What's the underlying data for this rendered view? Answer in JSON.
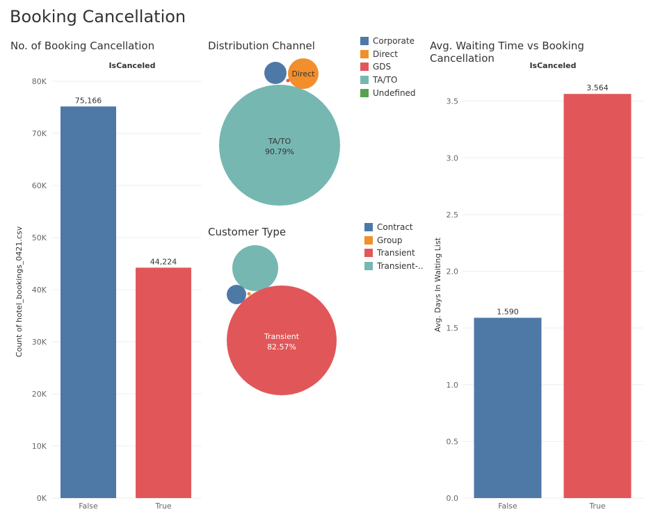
{
  "dashboard": {
    "title": "Booking Cancellation"
  },
  "chart_data": [
    {
      "id": "cancellation_count",
      "type": "bar",
      "title": "No. of Booking Cancellation",
      "column_header": "IsCanceled",
      "categories": [
        "False",
        "True"
      ],
      "values": [
        75166,
        44224
      ],
      "value_labels": [
        "75,166",
        "44,224"
      ],
      "colors": [
        "#4e79a7",
        "#e15759"
      ],
      "ylabel": "Count of hotel_bookings_0421.csv",
      "ylim": [
        0,
        80000
      ],
      "yticks": [
        0,
        10000,
        20000,
        30000,
        40000,
        50000,
        60000,
        70000,
        80000
      ],
      "ytick_labels": [
        "0K",
        "10K",
        "20K",
        "30K",
        "40K",
        "50K",
        "60K",
        "70K",
        "80K"
      ],
      "grid": true
    },
    {
      "id": "distribution_channel",
      "type": "bubble",
      "title": "Distribution Channel",
      "legend_position": "right",
      "series": [
        {
          "name": "Corporate",
          "color": "#4e79a7"
        },
        {
          "name": "Direct",
          "color": "#f28e2b",
          "label": "Direct"
        },
        {
          "name": "GDS",
          "color": "#e15759"
        },
        {
          "name": "TA/TO",
          "color": "#76b7b2",
          "label": "TA/TO",
          "share_label": "90.79%",
          "share": 0.9079
        },
        {
          "name": "Undefined",
          "color": "#59a14f"
        }
      ]
    },
    {
      "id": "customer_type",
      "type": "bubble",
      "title": "Customer Type",
      "legend_position": "right",
      "series": [
        {
          "name": "Contract",
          "color": "#4e79a7"
        },
        {
          "name": "Group",
          "color": "#f28e2b"
        },
        {
          "name": "Transient",
          "color": "#e15759",
          "label": "Transient",
          "share_label": "82.57%",
          "share": 0.8257
        },
        {
          "name": "Transient-..",
          "color": "#76b7b2"
        }
      ]
    },
    {
      "id": "avg_waiting_time",
      "type": "bar",
      "title": "Avg. Waiting Time vs Booking Cancellation",
      "column_header": "IsCanceled",
      "categories": [
        "False",
        "True"
      ],
      "values": [
        1.59,
        3.564
      ],
      "value_labels": [
        "1.590",
        "3.564"
      ],
      "colors": [
        "#4e79a7",
        "#e15759"
      ],
      "ylabel": "Avg. Days In Waiting List",
      "ylim": [
        0,
        3.7
      ],
      "yticks": [
        0,
        0.5,
        1.0,
        1.5,
        2.0,
        2.5,
        3.0,
        3.5
      ],
      "ytick_labels": [
        "0.0",
        "0.5",
        "1.0",
        "1.5",
        "2.0",
        "2.5",
        "3.0",
        "3.5"
      ],
      "grid": true
    }
  ]
}
